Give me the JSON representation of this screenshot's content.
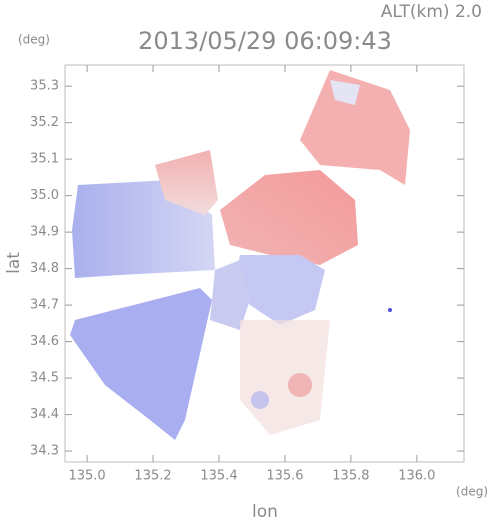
{
  "chart_data": {
    "type": "heatmap",
    "title": "2013/05/29 06:09:43",
    "subtitle": "ALT(km) 2.0",
    "x_label": "lon",
    "y_label": "lat",
    "x_unit": "(deg)",
    "y_unit": "(deg)",
    "xlim": [
      134.933,
      136.143
    ],
    "ylim": [
      34.27,
      35.358
    ],
    "xticks": [
      {
        "value": 135.0,
        "label": "135.0"
      },
      135.2,
      135.4,
      135.6,
      135.8,
      {
        "value": 136.0,
        "label": "136.0"
      }
    ],
    "yticks": [
      34.3,
      34.4,
      34.5,
      34.6,
      34.7,
      34.8,
      34.9,
      {
        "value": 35.0,
        "label": "35.0"
      },
      35.1,
      35.2,
      35.3
    ]
  }
}
